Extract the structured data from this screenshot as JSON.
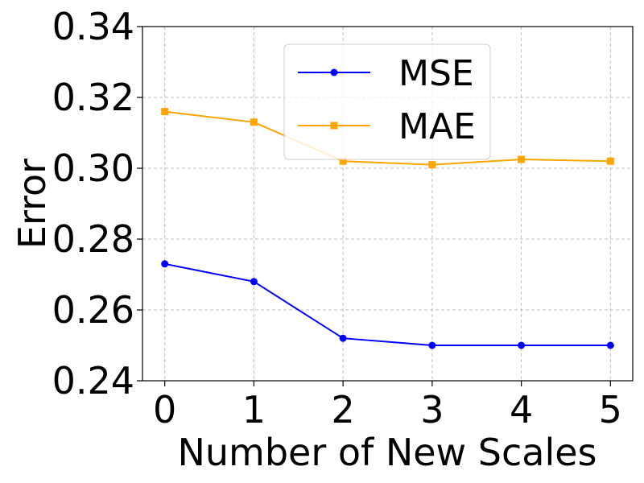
{
  "chart_data": {
    "type": "line",
    "x": [
      0,
      1,
      2,
      3,
      4,
      5
    ],
    "series": [
      {
        "name": "MSE",
        "values": [
          0.273,
          0.268,
          0.252,
          0.25,
          0.25,
          0.25
        ],
        "color": "#0000ff",
        "marker": "circle"
      },
      {
        "name": "MAE",
        "values": [
          0.316,
          0.313,
          0.302,
          0.301,
          0.3025,
          0.302
        ],
        "color": "#ffa500",
        "marker": "square"
      }
    ],
    "title": "",
    "xlabel": "Number of New Scales",
    "ylabel": "Error",
    "xlim": [
      -0.25,
      5.25
    ],
    "ylim": [
      0.24,
      0.34
    ],
    "x_ticks": [
      "0",
      "1",
      "2",
      "3",
      "4",
      "5"
    ],
    "y_ticks": [
      "0.24",
      "0.26",
      "0.28",
      "0.30",
      "0.32",
      "0.34"
    ],
    "grid": true,
    "legend_position": "upper-center"
  }
}
